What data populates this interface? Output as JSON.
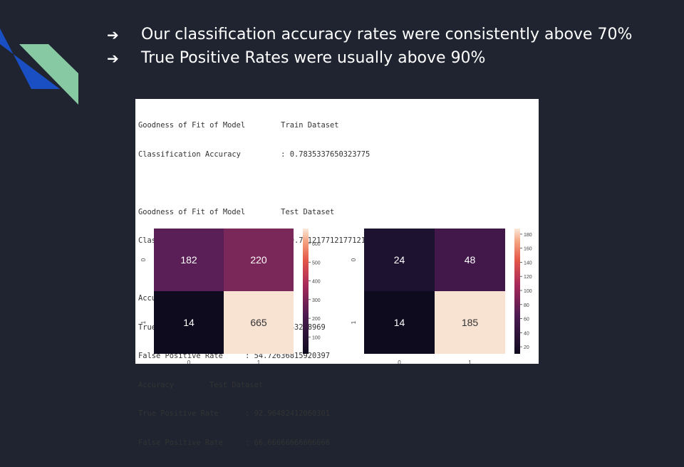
{
  "bullets": [
    {
      "text": "Our classification accuracy rates were consistently above 70%"
    },
    {
      "text": "True Positive Rates were usually above 90%"
    }
  ],
  "output_lines": [
    "Goodness of Fit of Model        Train Dataset",
    "Classification Accuracy         : 0.7835337650323775",
    "",
    "Goodness of Fit of Model        Test Dataset",
    "Classification Accuracy         : 0.7712177121771218",
    "",
    "Accuracy        Train Dataset",
    "True Positive Rate      : 97.9381443298969",
    "False Positive Rate     : 54.72636815920397",
    "Accuracy        Test Dataset",
    "True Positive Rate      : 92.96482412060301",
    "False Positive Rate     : 66.66666666666666"
  ],
  "heatmaps": [
    {
      "cells": [
        [
          182,
          220
        ],
        [
          14,
          665
        ]
      ],
      "colors": [
        [
          "#5a1f57",
          "#7a2759"
        ],
        [
          "#0f0b1f",
          "#f8e2d2"
        ]
      ],
      "text_colors": [
        [
          "#ffffff",
          "#ffffff"
        ],
        [
          "#ffffff",
          "#333333"
        ]
      ],
      "x_ticks": [
        "0",
        "1"
      ],
      "y_ticks": [
        "0",
        "1"
      ],
      "colorbar_ticks": [
        "100",
        "200",
        "300",
        "400",
        "500",
        "600"
      ]
    },
    {
      "cells": [
        [
          24,
          48
        ],
        [
          14,
          185
        ]
      ],
      "colors": [
        [
          "#1d1230",
          "#42184a"
        ],
        [
          "#0f0b1f",
          "#f8e2d2"
        ]
      ],
      "text_colors": [
        [
          "#ffffff",
          "#ffffff"
        ],
        [
          "#ffffff",
          "#333333"
        ]
      ],
      "x_ticks": [
        "0",
        "1"
      ],
      "y_ticks": [
        "0",
        "1"
      ],
      "colorbar_ticks": [
        "20",
        "40",
        "60",
        "80",
        "100",
        "120",
        "140",
        "160",
        "180"
      ]
    }
  ],
  "colors": {
    "background": "#1f2430",
    "deco_blue": "#1a4fc4",
    "deco_green": "#86c9a3"
  }
}
